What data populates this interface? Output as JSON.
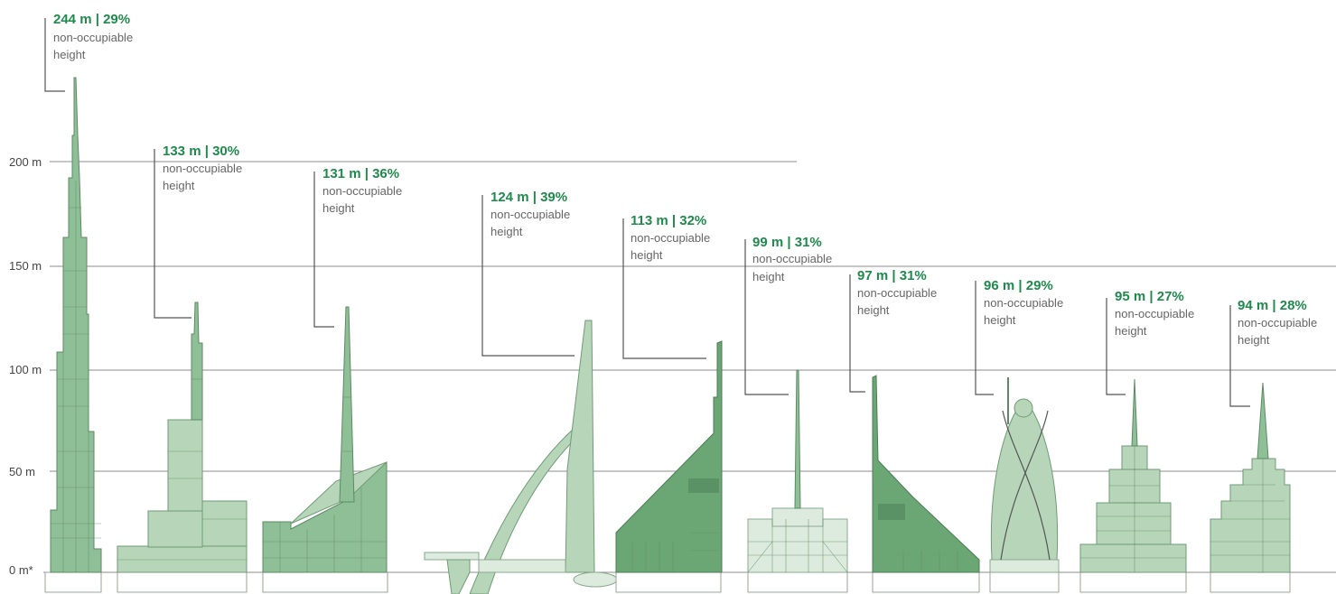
{
  "axis": {
    "ticks": [
      {
        "label": "0 m*",
        "value": 0
      },
      {
        "label": "50 m",
        "value": 50
      },
      {
        "label": "100 m",
        "value": 100
      },
      {
        "label": "150 m",
        "value": 150
      },
      {
        "label": "200 m",
        "value": 200
      }
    ]
  },
  "callouts": [
    {
      "value": "244 m | 29%",
      "desc1": "non-occupiable",
      "desc2": "height"
    },
    {
      "value": "133 m | 30%",
      "desc1": "non-occupiable",
      "desc2": "height"
    },
    {
      "value": "131 m | 36%",
      "desc1": "non-occupiable",
      "desc2": "height"
    },
    {
      "value": "124 m | 39%",
      "desc1": "non-occupiable",
      "desc2": "height"
    },
    {
      "value": "113 m | 32%",
      "desc1": "non-occupiable",
      "desc2": "height"
    },
    {
      "value": "99 m | 31%",
      "desc1": "non-occupiable",
      "desc2": "height"
    },
    {
      "value": "97 m | 31%",
      "desc1": "non-occupiable",
      "desc2": "height"
    },
    {
      "value": "96 m | 29%",
      "desc1": "non-occupiable",
      "desc2": "height"
    },
    {
      "value": "95 m | 27%",
      "desc1": "non-occupiable",
      "desc2": "height"
    },
    {
      "value": "94 m | 28%",
      "desc1": "non-occupiable",
      "desc2": "height"
    }
  ],
  "colors": {
    "accent_green": "#1f8a4c",
    "building_light": "#b7d6b9",
    "building_mid": "#8fbf97",
    "building_dark": "#6ba775"
  }
}
